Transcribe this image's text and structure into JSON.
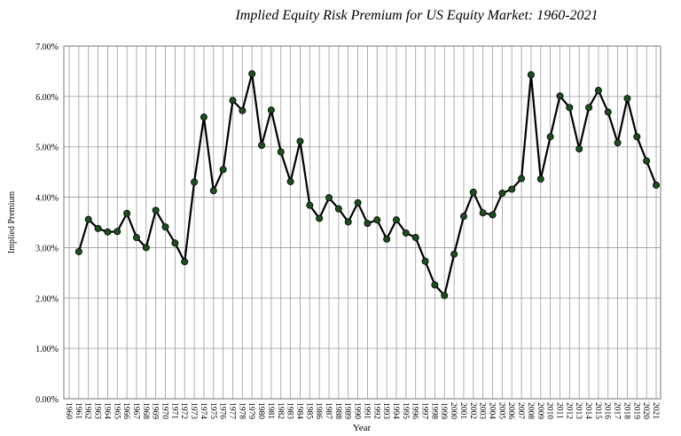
{
  "chart_data": {
    "type": "line",
    "title": "Implied Equity Risk Premium for US Equity Market: 1960-2021",
    "x_label": "Year",
    "y_label": "Implied Premium",
    "categories": [
      "1960",
      "1961",
      "1962",
      "1963",
      "1964",
      "1965",
      "1966",
      "1967",
      "1968",
      "1969",
      "1970",
      "1971",
      "1972",
      "1973",
      "1974",
      "1975",
      "1976",
      "1977",
      "1978",
      "1979",
      "1980",
      "1981",
      "1982",
      "1983",
      "1984",
      "1985",
      "1986",
      "1987",
      "1988",
      "1989",
      "1990",
      "1991",
      "1992",
      "1993",
      "1994",
      "1995",
      "1996",
      "1997",
      "1998",
      "1999",
      "2000",
      "2001",
      "2002",
      "2003",
      "2004",
      "2005",
      "2006",
      "2007",
      "2008",
      "2009",
      "2010",
      "2011",
      "2012",
      "2013",
      "2014",
      "2015",
      "2016",
      "2017",
      "2018",
      "2019",
      "2020",
      "2021"
    ],
    "series": [
      {
        "name": "Implied Premium",
        "color": "#000000",
        "marker_color": "#1d4d1d",
        "values": [
          null,
          2.92,
          3.56,
          3.38,
          3.31,
          3.32,
          3.68,
          3.2,
          3.0,
          3.74,
          3.41,
          3.09,
          2.72,
          4.3,
          5.59,
          4.13,
          4.55,
          5.92,
          5.72,
          6.45,
          5.03,
          5.73,
          4.9,
          4.31,
          5.11,
          3.84,
          3.58,
          3.99,
          3.77,
          3.51,
          3.89,
          3.48,
          3.55,
          3.17,
          3.55,
          3.29,
          3.2,
          2.73,
          2.26,
          2.05,
          2.87,
          3.62,
          4.1,
          3.69,
          3.65,
          4.08,
          4.16,
          4.37,
          6.43,
          4.36,
          5.2,
          6.01,
          5.78,
          4.96,
          5.78,
          6.12,
          5.69,
          5.08,
          5.96,
          5.2,
          4.72,
          4.24
        ]
      }
    ],
    "ylim": [
      0,
      7
    ],
    "yticks": [
      {
        "value": 0,
        "label": "0.00%"
      },
      {
        "value": 1,
        "label": "1.00%"
      },
      {
        "value": 2,
        "label": "2.00%"
      },
      {
        "value": 3,
        "label": "3.00%"
      },
      {
        "value": 4,
        "label": "4.00%"
      },
      {
        "value": 5,
        "label": "5.00%"
      },
      {
        "value": 6,
        "label": "6.00%"
      },
      {
        "value": 7,
        "label": "7.00%"
      }
    ],
    "grid": true
  }
}
